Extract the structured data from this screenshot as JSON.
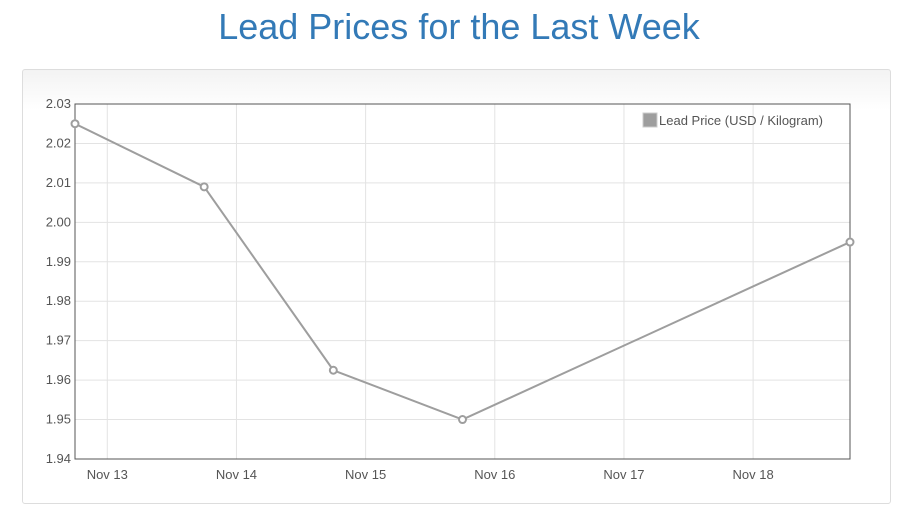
{
  "title": "Lead Prices for the Last Week",
  "chart_data": {
    "type": "line",
    "title": "Lead Prices for the Last Week",
    "x_ticks": [
      "Nov 13",
      "Nov 14",
      "Nov 15",
      "Nov 16",
      "Nov 17",
      "Nov 18"
    ],
    "y_ticks": [
      "2.03",
      "2.02",
      "2.01",
      "2.00",
      "1.99",
      "1.98",
      "1.97",
      "1.96",
      "1.95",
      "1.94"
    ],
    "ylim": [
      1.94,
      2.03
    ],
    "xlim": [
      "Nov 12 18:00",
      "Nov 18 18:00"
    ],
    "grid": true,
    "legend_position": "top-right",
    "series": [
      {
        "name": "Lead Price (USD / Kilogram)",
        "color": "#9e9e9e",
        "points": [
          {
            "x": "Nov 12 18:00",
            "y": 2.025
          },
          {
            "x": "Nov 13 18:00",
            "y": 2.009
          },
          {
            "x": "Nov 14 18:00",
            "y": 1.9625
          },
          {
            "x": "Nov 15 18:00",
            "y": 1.95
          },
          {
            "x": "Nov 18 18:00",
            "y": 1.995
          }
        ]
      }
    ]
  }
}
